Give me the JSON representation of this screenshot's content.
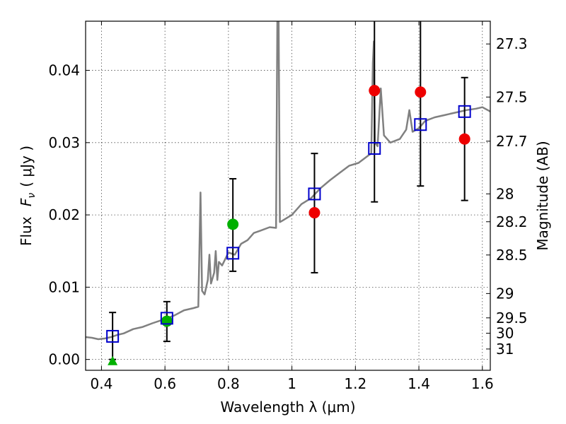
{
  "chart_data": {
    "type": "scatter",
    "title": "",
    "xlabel": "Wavelength  λ (μm)",
    "ylabel_left_prefix": "Flux",
    "ylabel_left_symbol": "F",
    "ylabel_left_sub": "ν",
    "ylabel_left_unit": "( μJy )",
    "ylabel_right": "Magnitude (AB)",
    "xlim": [
      0.35,
      1.625
    ],
    "ylim": [
      -0.0015,
      0.0468
    ],
    "grid": true,
    "x_ticks": [
      {
        "value": 0.4,
        "label": "0.4"
      },
      {
        "value": 0.6,
        "label": "0.6"
      },
      {
        "value": 0.8,
        "label": "0.8"
      },
      {
        "value": 1.0,
        "label": "1"
      },
      {
        "value": 1.2,
        "label": "1.2"
      },
      {
        "value": 1.4,
        "label": "1.4"
      },
      {
        "value": 1.6,
        "label": "1.6"
      }
    ],
    "y_ticks": [
      {
        "value": 0.0,
        "label": "0.00"
      },
      {
        "value": 0.01,
        "label": "0.01"
      },
      {
        "value": 0.02,
        "label": "0.02"
      },
      {
        "value": 0.03,
        "label": "0.03"
      },
      {
        "value": 0.04,
        "label": "0.04"
      }
    ],
    "right_ticks": [
      {
        "label": "27.3",
        "mag": 27.3
      },
      {
        "label": "27.5",
        "mag": 27.5
      },
      {
        "label": "27.7",
        "mag": 27.7
      },
      {
        "label": "28",
        "mag": 28
      },
      {
        "label": "28.2",
        "mag": 28.2
      },
      {
        "label": "28.5",
        "mag": 28.5
      },
      {
        "label": "29",
        "mag": 29
      },
      {
        "label": "29.5",
        "mag": 29.5
      },
      {
        "label": "30",
        "mag": 30
      },
      {
        "label": "31",
        "mag": 31
      }
    ],
    "sed_color": "#808080",
    "sed_spectrum": [
      [
        0.35,
        0.0031
      ],
      [
        0.37,
        0.003
      ],
      [
        0.39,
        0.0028
      ],
      [
        0.41,
        0.0029
      ],
      [
        0.43,
        0.0031
      ],
      [
        0.45,
        0.0034
      ],
      [
        0.47,
        0.0036
      ],
      [
        0.5,
        0.0042
      ],
      [
        0.53,
        0.0045
      ],
      [
        0.56,
        0.005
      ],
      [
        0.6,
        0.0056
      ],
      [
        0.63,
        0.0061
      ],
      [
        0.66,
        0.0068
      ],
      [
        0.69,
        0.0071
      ],
      [
        0.705,
        0.0073
      ],
      [
        0.712,
        0.0231
      ],
      [
        0.717,
        0.0095
      ],
      [
        0.725,
        0.009
      ],
      [
        0.735,
        0.011
      ],
      [
        0.74,
        0.0145
      ],
      [
        0.745,
        0.0105
      ],
      [
        0.755,
        0.012
      ],
      [
        0.76,
        0.015
      ],
      [
        0.765,
        0.011
      ],
      [
        0.77,
        0.0135
      ],
      [
        0.78,
        0.013
      ],
      [
        0.8,
        0.0148
      ],
      [
        0.82,
        0.0145
      ],
      [
        0.84,
        0.016
      ],
      [
        0.86,
        0.0165
      ],
      [
        0.88,
        0.0175
      ],
      [
        0.9,
        0.0178
      ],
      [
        0.93,
        0.0183
      ],
      [
        0.95,
        0.0182
      ],
      [
        0.954,
        0.047
      ],
      [
        0.958,
        0.047
      ],
      [
        0.962,
        0.019
      ],
      [
        0.97,
        0.0192
      ],
      [
        1.0,
        0.02
      ],
      [
        1.03,
        0.0215
      ],
      [
        1.06,
        0.0223
      ],
      [
        1.09,
        0.0237
      ],
      [
        1.12,
        0.0248
      ],
      [
        1.15,
        0.0258
      ],
      [
        1.18,
        0.0268
      ],
      [
        1.21,
        0.0272
      ],
      [
        1.24,
        0.0282
      ],
      [
        1.25,
        0.0285
      ],
      [
        1.255,
        0.041
      ],
      [
        1.258,
        0.044
      ],
      [
        1.262,
        0.03
      ],
      [
        1.27,
        0.0295
      ],
      [
        1.28,
        0.0375
      ],
      [
        1.29,
        0.031
      ],
      [
        1.31,
        0.03
      ],
      [
        1.34,
        0.0305
      ],
      [
        1.36,
        0.0318
      ],
      [
        1.37,
        0.0345
      ],
      [
        1.38,
        0.0315
      ],
      [
        1.4,
        0.032
      ],
      [
        1.42,
        0.033
      ],
      [
        1.45,
        0.0335
      ],
      [
        1.48,
        0.0338
      ],
      [
        1.5,
        0.034
      ],
      [
        1.52,
        0.0342
      ],
      [
        1.55,
        0.0345
      ],
      [
        1.58,
        0.0347
      ],
      [
        1.6,
        0.0349
      ],
      [
        1.625,
        0.0343
      ]
    ],
    "model_points": {
      "color": "#0000cc",
      "marker": "open-square",
      "points": [
        {
          "x": 0.435,
          "y": 0.0032
        },
        {
          "x": 0.606,
          "y": 0.0057
        },
        {
          "x": 0.814,
          "y": 0.0147
        },
        {
          "x": 1.071,
          "y": 0.0229
        },
        {
          "x": 1.26,
          "y": 0.0292
        },
        {
          "x": 1.405,
          "y": 0.0325
        },
        {
          "x": 1.544,
          "y": 0.0343
        }
      ]
    },
    "detections": {
      "color": "#00b000",
      "marker": "filled-circle",
      "points": [
        {
          "x": 0.606,
          "y": 0.0053
        },
        {
          "x": 0.814,
          "y": 0.0187
        }
      ]
    },
    "upper_limit": {
      "color": "#00b000",
      "marker": "triangle",
      "points": [
        {
          "x": 0.435,
          "y": -0.0002
        }
      ]
    },
    "limits": {
      "color": "#ee0000",
      "marker": "filled-circle",
      "points": [
        {
          "x": 1.071,
          "y": 0.0203
        },
        {
          "x": 1.26,
          "y": 0.0372
        },
        {
          "x": 1.405,
          "y": 0.037
        },
        {
          "x": 1.544,
          "y": 0.0305
        }
      ]
    },
    "error_bars": [
      {
        "x": 0.435,
        "low": 0.0,
        "high": 0.0065
      },
      {
        "x": 0.606,
        "low": 0.0025,
        "high": 0.008
      },
      {
        "x": 0.814,
        "low": 0.0122,
        "high": 0.025
      },
      {
        "x": 1.071,
        "low": 0.012,
        "high": 0.0285
      },
      {
        "x": 1.26,
        "low": 0.0218,
        "high": 0.047
      },
      {
        "x": 1.405,
        "low": 0.024,
        "high": 0.047
      },
      {
        "x": 1.544,
        "low": 0.022,
        "high": 0.039
      }
    ]
  }
}
